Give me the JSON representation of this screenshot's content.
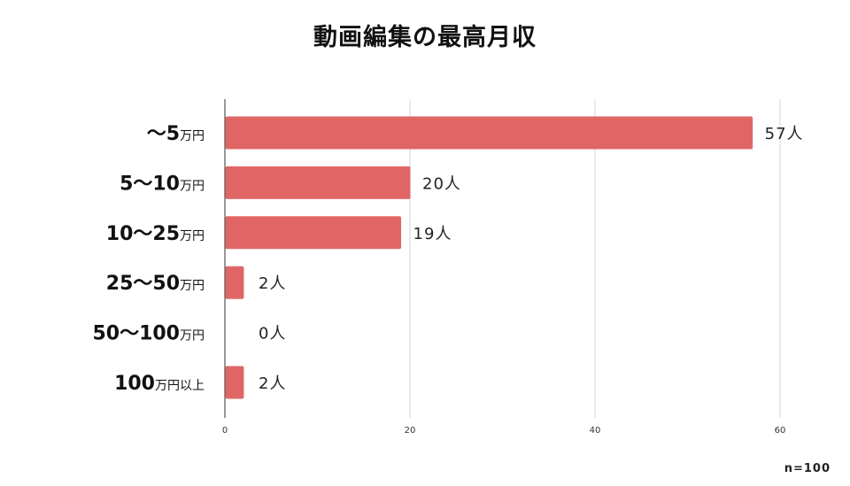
{
  "chart_data": {
    "type": "bar",
    "orientation": "horizontal",
    "title": "動画編集の最高月収",
    "categories": [
      {
        "main": "〜5",
        "unit": "万円"
      },
      {
        "main": "5〜10",
        "unit": "万円"
      },
      {
        "main": "10〜25",
        "unit": "万円"
      },
      {
        "main": "25〜50",
        "unit": "万円"
      },
      {
        "main": "50〜100",
        "unit": "万円"
      },
      {
        "main": "100",
        "unit": "万円以上"
      }
    ],
    "values": [
      57,
      20,
      19,
      2,
      0,
      2
    ],
    "value_labels": [
      "57人",
      "20人",
      "19人",
      "2人",
      "0人",
      "2人"
    ],
    "xlim": [
      0,
      60
    ],
    "xticks": [
      "0",
      "20",
      "40",
      "60"
    ],
    "grid": true,
    "bar_color": "#e06666",
    "note": "n=100"
  }
}
